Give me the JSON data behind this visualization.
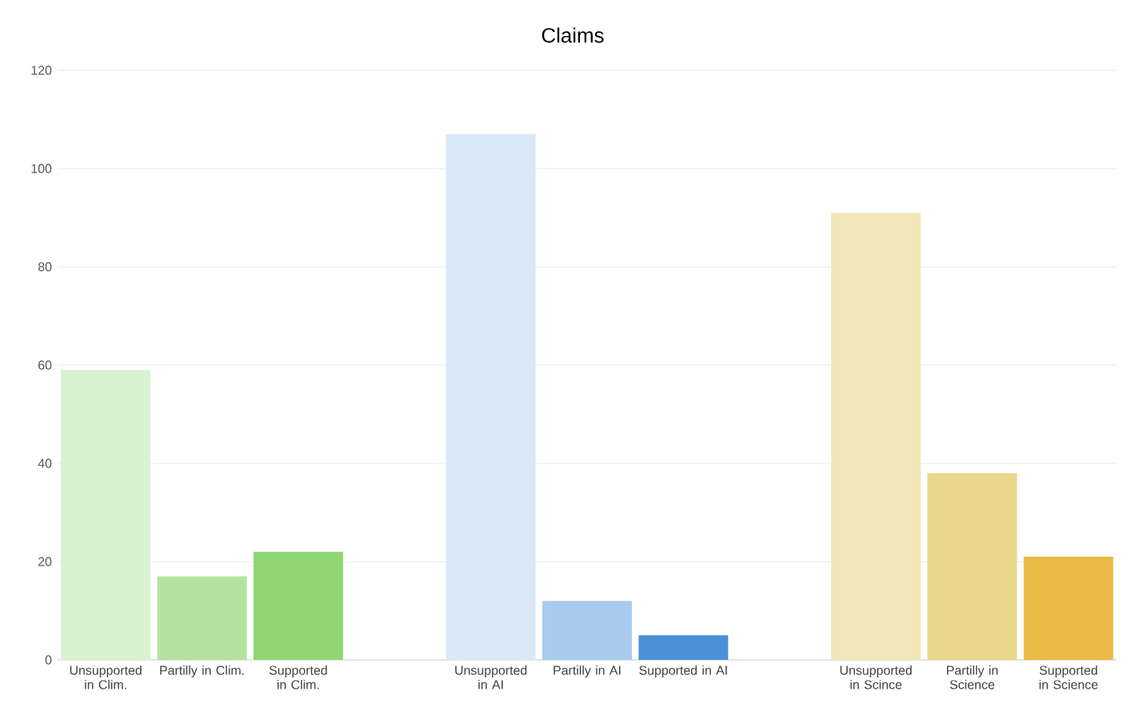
{
  "chart_data": {
    "type": "bar",
    "title": "Claims",
    "categories": [
      "Unsupported in Clim.",
      "Partilly in Clim.",
      "Supported in Clim.",
      null,
      "Unsupported in AI",
      "Partilly in AI",
      "Supported in AI",
      null,
      "Unsupported in Scince",
      "Partilly in Science",
      "Supported in Science"
    ],
    "values": [
      59,
      17,
      22,
      null,
      107,
      12,
      5,
      null,
      91,
      38,
      21
    ],
    "colors": [
      "#d9f2d0",
      "#b4e3a0",
      "#8fd672",
      null,
      "#dae8f7",
      "#a9cbee",
      "#4a90d9",
      null,
      "#f0e6b8",
      "#e8d68a",
      "#e9bb45"
    ],
    "ylim": [
      0,
      120
    ],
    "yticks": [
      0,
      20,
      40,
      60,
      80,
      100,
      120
    ],
    "grid": "y"
  }
}
